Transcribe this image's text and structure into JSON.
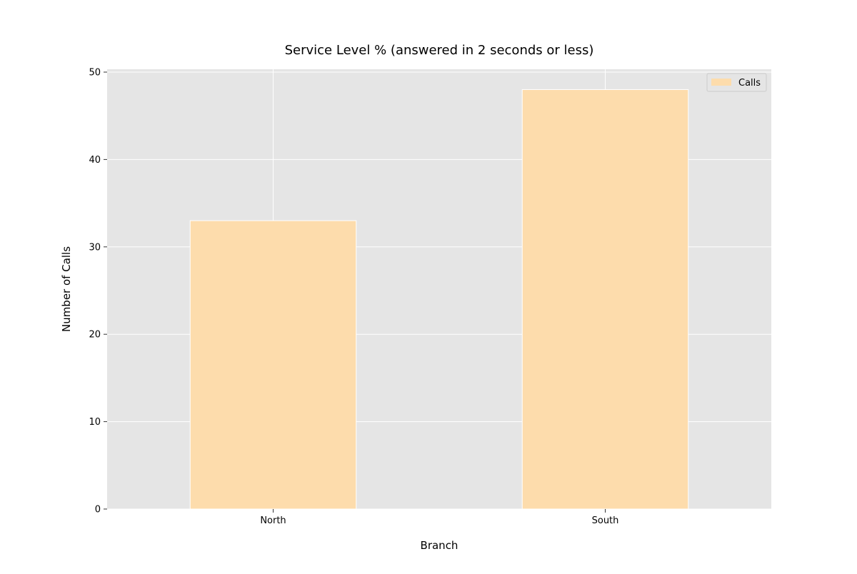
{
  "chart_data": {
    "type": "bar",
    "title": "Service Level % (answered in 2 seconds or less)",
    "xlabel": "Branch",
    "ylabel": "Number of Calls",
    "categories": [
      "North",
      "South"
    ],
    "series": [
      {
        "name": "Calls",
        "values": [
          33,
          48
        ]
      }
    ],
    "ylim": [
      0,
      50
    ],
    "yticks": [
      0,
      10,
      20,
      30,
      40,
      50
    ],
    "grid": true,
    "legend_position": "top-right"
  },
  "colors": {
    "bar_fill": "#fddcac",
    "plot_background": "#e5e5e5",
    "grid": "#ffffff"
  }
}
